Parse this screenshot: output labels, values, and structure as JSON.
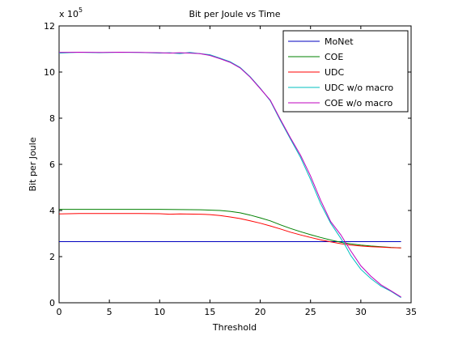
{
  "chart_data": {
    "type": "line",
    "title": "Bit per Joule vs Time",
    "xlabel": "Threshold",
    "ylabel": "Bit per Joule",
    "y_scale_label": {
      "base": "x 10",
      "exponent": "5"
    },
    "xlim": [
      0,
      35
    ],
    "ylim": [
      0,
      12
    ],
    "y_multiplier": 100000,
    "xticks": [
      0,
      5,
      10,
      15,
      20,
      25,
      30,
      35
    ],
    "yticks": [
      0,
      2,
      4,
      6,
      8,
      10,
      12
    ],
    "grid": false,
    "legend_position": "top-right",
    "series": [
      {
        "name": "MoNet",
        "color": "#0000bf",
        "x": [
          0,
          34
        ],
        "y": [
          2.65,
          2.65
        ]
      },
      {
        "name": "COE",
        "color": "#008000",
        "x": [
          0,
          2,
          4,
          6,
          8,
          10,
          12,
          14,
          16,
          17,
          18,
          19,
          20,
          21,
          22,
          23,
          24,
          25,
          26,
          27,
          28,
          29,
          30,
          31,
          32,
          33,
          34
        ],
        "y": [
          4.05,
          4.05,
          4.05,
          4.05,
          4.05,
          4.05,
          4.04,
          4.03,
          4.0,
          3.96,
          3.9,
          3.8,
          3.68,
          3.55,
          3.38,
          3.22,
          3.08,
          2.95,
          2.83,
          2.72,
          2.62,
          2.55,
          2.5,
          2.46,
          2.43,
          2.4,
          2.38
        ]
      },
      {
        "name": "UDC",
        "color": "#ff0000",
        "x": [
          0,
          2,
          4,
          6,
          8,
          10,
          11,
          12,
          14,
          15,
          16,
          17,
          18,
          19,
          20,
          21,
          22,
          23,
          24,
          25,
          26,
          27,
          28,
          29,
          30,
          31,
          32,
          33,
          34
        ],
        "y": [
          3.85,
          3.87,
          3.87,
          3.87,
          3.87,
          3.86,
          3.84,
          3.85,
          3.84,
          3.82,
          3.78,
          3.72,
          3.65,
          3.55,
          3.45,
          3.33,
          3.2,
          3.06,
          2.94,
          2.83,
          2.73,
          2.64,
          2.56,
          2.5,
          2.46,
          2.43,
          2.41,
          2.39,
          2.38
        ]
      },
      {
        "name": "UDC w/o macro",
        "color": "#00bfbf",
        "x": [
          0,
          2,
          4,
          6,
          8,
          10,
          11,
          12,
          13,
          14,
          15,
          16,
          17,
          18,
          19,
          20,
          21,
          22,
          23,
          24,
          25,
          26,
          27,
          28,
          28.5,
          29,
          30,
          31,
          32,
          33,
          34
        ],
        "y": [
          10.82,
          10.86,
          10.84,
          10.86,
          10.85,
          10.82,
          10.84,
          10.8,
          10.85,
          10.8,
          10.75,
          10.6,
          10.45,
          10.2,
          9.8,
          9.3,
          8.75,
          7.9,
          7.1,
          6.3,
          5.35,
          4.3,
          3.45,
          2.8,
          2.45,
          2.05,
          1.45,
          1.05,
          0.72,
          0.5,
          0.22
        ]
      },
      {
        "name": "COE w/o macro",
        "color": "#bf00bf",
        "x": [
          0,
          2,
          4,
          6,
          8,
          10,
          11,
          12,
          13,
          14,
          15,
          16,
          17,
          18,
          19,
          20,
          21,
          22,
          23,
          24,
          25,
          26,
          27,
          28,
          28.5,
          29,
          30,
          31,
          32,
          33,
          34
        ],
        "y": [
          10.85,
          10.86,
          10.85,
          10.86,
          10.85,
          10.84,
          10.82,
          10.84,
          10.82,
          10.8,
          10.72,
          10.58,
          10.42,
          10.18,
          9.78,
          9.28,
          8.78,
          7.95,
          7.15,
          6.4,
          5.5,
          4.45,
          3.52,
          2.95,
          2.6,
          2.25,
          1.6,
          1.15,
          0.78,
          0.52,
          0.25
        ]
      }
    ]
  }
}
